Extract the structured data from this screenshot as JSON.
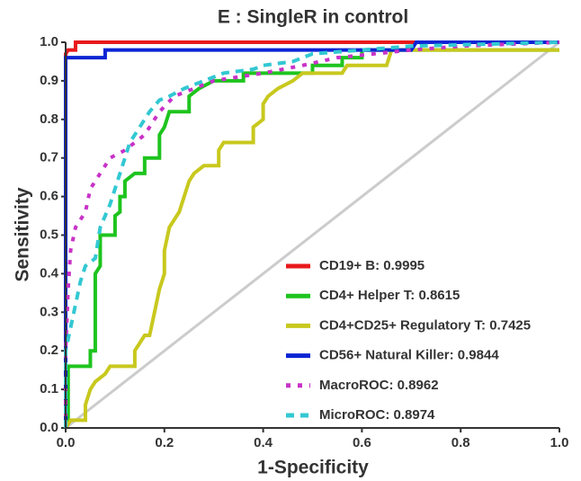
{
  "chart_data": {
    "type": "line",
    "title": "E : SingleR in control",
    "x_label": "1-Specificity",
    "y_label": "Sensitivity",
    "xlim": [
      0,
      1
    ],
    "ylim": [
      0,
      1
    ],
    "xticks": [
      {
        "value": 0,
        "label": "0.0"
      },
      0.2,
      0.4,
      0.6,
      0.8,
      {
        "value": 1,
        "label": "1.0"
      }
    ],
    "yticks": [
      {
        "value": 0,
        "label": "0.0"
      },
      0.1,
      0.2,
      0.3,
      0.4,
      0.5,
      0.6,
      0.7,
      0.8,
      0.9,
      {
        "value": 1,
        "label": "1.0"
      }
    ],
    "grid": false,
    "legend": "lower right",
    "series": [
      {
        "name": "CD19+ B: 0.9995",
        "color": "#e8191c",
        "style": "solid",
        "x": [
          0,
          0,
          0.005,
          0.02,
          0.02,
          1
        ],
        "values": [
          0,
          0.97,
          0.98,
          0.98,
          1,
          1
        ]
      },
      {
        "name": "CD4+ Helper T: 0.8615",
        "color": "#1ec41e",
        "style": "solid",
        "x": [
          0,
          0,
          0.005,
          0.005,
          0.05,
          0.05,
          0.06,
          0.06,
          0.07,
          0.07,
          0.1,
          0.1,
          0.11,
          0.11,
          0.12,
          0.12,
          0.14,
          0.16,
          0.16,
          0.19,
          0.19,
          0.2,
          0.21,
          0.25,
          0.25,
          0.27,
          0.3,
          0.36,
          0.36,
          0.5,
          0.5,
          0.56,
          0.56,
          0.6,
          0.6,
          1
        ],
        "values": [
          0,
          0.02,
          0.02,
          0.16,
          0.16,
          0.2,
          0.2,
          0.4,
          0.42,
          0.5,
          0.5,
          0.55,
          0.56,
          0.6,
          0.6,
          0.64,
          0.66,
          0.66,
          0.7,
          0.7,
          0.76,
          0.78,
          0.82,
          0.82,
          0.86,
          0.88,
          0.9,
          0.9,
          0.92,
          0.92,
          0.94,
          0.94,
          0.96,
          0.96,
          0.98,
          0.98
        ]
      },
      {
        "name": "CD4+CD25+ Regulatory T: 0.7425",
        "color": "#c8c81e",
        "style": "solid",
        "x": [
          0,
          0.01,
          0.04,
          0.04,
          0.05,
          0.06,
          0.08,
          0.09,
          0.14,
          0.14,
          0.15,
          0.16,
          0.17,
          0.18,
          0.19,
          0.2,
          0.2,
          0.21,
          0.23,
          0.24,
          0.25,
          0.26,
          0.28,
          0.31,
          0.31,
          0.32,
          0.38,
          0.38,
          0.4,
          0.4,
          0.41,
          0.43,
          0.46,
          0.48,
          0.56,
          0.57,
          0.65,
          0.66,
          1
        ],
        "values": [
          0,
          0.02,
          0.02,
          0.06,
          0.1,
          0.12,
          0.14,
          0.16,
          0.16,
          0.2,
          0.22,
          0.24,
          0.24,
          0.3,
          0.36,
          0.4,
          0.46,
          0.52,
          0.56,
          0.6,
          0.64,
          0.66,
          0.68,
          0.68,
          0.72,
          0.74,
          0.74,
          0.78,
          0.8,
          0.84,
          0.86,
          0.88,
          0.9,
          0.92,
          0.92,
          0.94,
          0.94,
          0.98,
          0.98
        ]
      },
      {
        "name": "CD56+ Natural Killer: 0.9844",
        "color": "#0b24d4",
        "style": "solid",
        "x": [
          0,
          0,
          0.08,
          0.08,
          0.7,
          0.71,
          1
        ],
        "values": [
          0,
          0.96,
          0.96,
          0.98,
          0.98,
          1,
          1
        ]
      },
      {
        "name": "MacroROC: 0.8962",
        "color": "#c832c8",
        "style": "dotted",
        "x": [
          0,
          0,
          0.005,
          0.01,
          0.02,
          0.04,
          0.05,
          0.07,
          0.09,
          0.12,
          0.16,
          0.19,
          0.22,
          0.26,
          0.3,
          0.4,
          0.48,
          0.55,
          0.7,
          0.8,
          1
        ],
        "values": [
          0,
          0.2,
          0.36,
          0.46,
          0.52,
          0.56,
          0.62,
          0.66,
          0.7,
          0.72,
          0.76,
          0.82,
          0.86,
          0.88,
          0.9,
          0.92,
          0.94,
          0.96,
          0.98,
          0.99,
          1
        ]
      },
      {
        "name": "MicroROC: 0.8974",
        "color": "#32c8d2",
        "style": "dashed",
        "x": [
          0,
          0,
          0.01,
          0.02,
          0.03,
          0.04,
          0.06,
          0.07,
          0.09,
          0.1,
          0.11,
          0.12,
          0.13,
          0.15,
          0.17,
          0.19,
          0.21,
          0.24,
          0.28,
          0.32,
          0.38,
          0.4,
          0.46,
          0.5,
          0.6,
          0.7,
          1
        ],
        "values": [
          0,
          0.2,
          0.26,
          0.32,
          0.38,
          0.42,
          0.44,
          0.52,
          0.58,
          0.62,
          0.66,
          0.7,
          0.74,
          0.78,
          0.82,
          0.85,
          0.86,
          0.88,
          0.9,
          0.92,
          0.93,
          0.94,
          0.95,
          0.97,
          0.98,
          0.99,
          1
        ]
      }
    ]
  }
}
